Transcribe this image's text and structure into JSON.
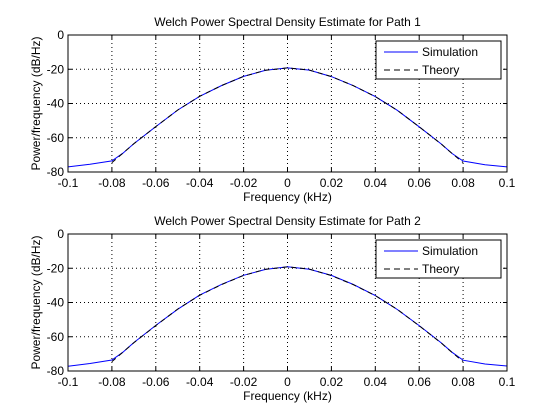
{
  "chart_data": [
    {
      "type": "line",
      "title": "Welch Power Spectral Density Estimate for Path 1",
      "xlabel": "Frequency (kHz)",
      "ylabel": "Power/frequency (dB/Hz)",
      "xlim": [
        -0.1,
        0.1
      ],
      "ylim": [
        -80,
        0
      ],
      "x_ticks": [
        -0.1,
        -0.08,
        -0.06,
        -0.04,
        -0.02,
        0,
        0.02,
        0.04,
        0.06,
        0.08,
        0.1
      ],
      "x_tick_labels": [
        "-0.1",
        "-0.08",
        "-0.06",
        "-0.04",
        "-0.02",
        "0",
        "0.02",
        "0.04",
        "0.06",
        "0.08",
        "0.1"
      ],
      "y_ticks": [
        -80,
        -60,
        -40,
        -20,
        0
      ],
      "y_tick_labels": [
        "-80",
        "-60",
        "-40",
        "-20",
        "0"
      ],
      "grid": true,
      "legend_position": "top-right",
      "series": [
        {
          "name": "Simulation",
          "color": "#0000ff",
          "style": "solid",
          "x": [
            -0.1,
            -0.09,
            -0.08,
            -0.075,
            -0.07,
            -0.06,
            -0.05,
            -0.04,
            -0.03,
            -0.02,
            -0.01,
            0,
            0.01,
            0.02,
            0.03,
            0.04,
            0.05,
            0.06,
            0.07,
            0.075,
            0.08,
            0.09,
            0.1
          ],
          "y": [
            -77,
            -75.5,
            -73.5,
            -69,
            -63.5,
            -53.5,
            -43.8,
            -35.8,
            -29.5,
            -24.2,
            -20.6,
            -19.2,
            -20.5,
            -24.3,
            -29.6,
            -36,
            -44,
            -53.6,
            -63.6,
            -69.2,
            -73.6,
            -75.8,
            -77
          ]
        },
        {
          "name": "Theory",
          "color": "#000000",
          "style": "dashed",
          "x": [
            -0.08,
            -0.075,
            -0.07,
            -0.06,
            -0.05,
            -0.04,
            -0.03,
            -0.02,
            -0.01,
            0,
            0.01,
            0.02,
            0.03,
            0.04,
            0.05,
            0.06,
            0.07,
            0.075,
            0.08
          ],
          "y": [
            -74.5,
            -69,
            -63.5,
            -53.5,
            -43.8,
            -35.8,
            -29.5,
            -24.2,
            -20.6,
            -19.2,
            -20.5,
            -24.3,
            -29.6,
            -36,
            -44,
            -53.6,
            -63.6,
            -69.2,
            -74.5
          ]
        }
      ]
    },
    {
      "type": "line",
      "title": "Welch Power Spectral Density Estimate for Path 2",
      "xlabel": "Frequency (kHz)",
      "ylabel": "Power/frequency (dB/Hz)",
      "xlim": [
        -0.1,
        0.1
      ],
      "ylim": [
        -80,
        0
      ],
      "x_ticks": [
        -0.1,
        -0.08,
        -0.06,
        -0.04,
        -0.02,
        0,
        0.02,
        0.04,
        0.06,
        0.08,
        0.1
      ],
      "x_tick_labels": [
        "-0.1",
        "-0.08",
        "-0.06",
        "-0.04",
        "-0.02",
        "0",
        "0.02",
        "0.04",
        "0.06",
        "0.08",
        "0.1"
      ],
      "y_ticks": [
        -80,
        -60,
        -40,
        -20,
        0
      ],
      "y_tick_labels": [
        "-80",
        "-60",
        "-40",
        "-20",
        "0"
      ],
      "grid": true,
      "legend_position": "top-right",
      "series": [
        {
          "name": "Simulation",
          "color": "#0000ff",
          "style": "solid",
          "x": [
            -0.1,
            -0.09,
            -0.08,
            -0.075,
            -0.07,
            -0.06,
            -0.05,
            -0.04,
            -0.03,
            -0.02,
            -0.01,
            0,
            0.01,
            0.02,
            0.03,
            0.04,
            0.05,
            0.06,
            0.07,
            0.075,
            0.08,
            0.09,
            0.1
          ],
          "y": [
            -77.2,
            -75.6,
            -73.6,
            -69,
            -63.4,
            -53.4,
            -43.9,
            -35.7,
            -29.4,
            -24.1,
            -20.7,
            -19.1,
            -20.6,
            -24.2,
            -29.5,
            -35.9,
            -44.1,
            -53.5,
            -63.5,
            -69.1,
            -73.7,
            -75.9,
            -77.1
          ]
        },
        {
          "name": "Theory",
          "color": "#000000",
          "style": "dashed",
          "x": [
            -0.08,
            -0.075,
            -0.07,
            -0.06,
            -0.05,
            -0.04,
            -0.03,
            -0.02,
            -0.01,
            0,
            0.01,
            0.02,
            0.03,
            0.04,
            0.05,
            0.06,
            0.07,
            0.075,
            0.08
          ],
          "y": [
            -74.5,
            -69,
            -63.5,
            -53.5,
            -43.8,
            -35.8,
            -29.5,
            -24.2,
            -20.6,
            -19.2,
            -20.5,
            -24.3,
            -29.6,
            -36,
            -44,
            -53.6,
            -63.6,
            -69.2,
            -74.5
          ]
        }
      ]
    }
  ]
}
